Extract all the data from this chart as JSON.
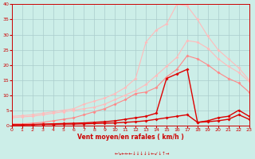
{
  "x": [
    0,
    1,
    2,
    3,
    4,
    5,
    6,
    7,
    8,
    9,
    10,
    11,
    12,
    13,
    14,
    15,
    16,
    17,
    18,
    19,
    20,
    21,
    22,
    23
  ],
  "line_pink_upper": [
    3.0,
    3.2,
    3.5,
    4.0,
    4.5,
    5.0,
    5.5,
    7.0,
    8.0,
    9.0,
    10.5,
    12.5,
    15.5,
    27.5,
    31.5,
    33.5,
    40.0,
    39.5,
    35.0,
    29.5,
    25.0,
    22.0,
    19.0,
    15.0
  ],
  "line_pink_lower": [
    2.5,
    2.8,
    3.0,
    3.5,
    4.0,
    4.5,
    5.0,
    5.5,
    6.0,
    7.0,
    8.5,
    10.0,
    11.5,
    13.5,
    16.5,
    19.5,
    22.5,
    28.0,
    27.5,
    25.5,
    22.0,
    19.5,
    17.5,
    14.5
  ],
  "line_salmon": [
    0.5,
    0.5,
    0.7,
    1.0,
    1.5,
    2.0,
    2.5,
    3.5,
    4.5,
    5.5,
    7.0,
    8.5,
    10.5,
    11.0,
    12.5,
    16.0,
    18.5,
    23.0,
    22.0,
    20.0,
    17.5,
    15.5,
    14.0,
    11.0
  ],
  "line_red_spike": [
    0.2,
    0.2,
    0.3,
    0.4,
    0.5,
    0.6,
    0.7,
    0.8,
    1.0,
    1.2,
    1.5,
    2.0,
    2.5,
    3.0,
    4.0,
    15.5,
    17.0,
    18.5,
    1.0,
    1.5,
    2.5,
    3.0,
    5.0,
    3.0
  ],
  "line_red_flat": [
    0.2,
    0.2,
    0.2,
    0.3,
    0.3,
    0.4,
    0.4,
    0.5,
    0.6,
    0.7,
    0.8,
    1.0,
    1.2,
    1.5,
    2.0,
    2.5,
    3.0,
    3.5,
    1.0,
    1.2,
    1.5,
    2.0,
    3.5,
    2.0
  ],
  "line_pink_upper_color": "#ffbbbb",
  "line_pink_lower_color": "#ffbbbb",
  "line_salmon_color": "#ff8888",
  "line_red_spike_color": "#dd0000",
  "line_red_flat_color": "#dd0000",
  "bg_color": "#cceee8",
  "grid_color": "#aacccc",
  "xlabel": "Vent moyen/en rafales ( km/h )",
  "ylim": [
    0,
    40
  ],
  "xlim": [
    0,
    23
  ],
  "yticks": [
    0,
    5,
    10,
    15,
    20,
    25,
    30,
    35,
    40
  ],
  "xticks": [
    0,
    1,
    2,
    3,
    4,
    5,
    6,
    7,
    8,
    9,
    10,
    11,
    12,
    13,
    14,
    15,
    16,
    17,
    18,
    19,
    20,
    21,
    22,
    23
  ],
  "axis_color": "#cc0000",
  "tick_color": "#cc0000",
  "xlabel_color": "#cc0000"
}
